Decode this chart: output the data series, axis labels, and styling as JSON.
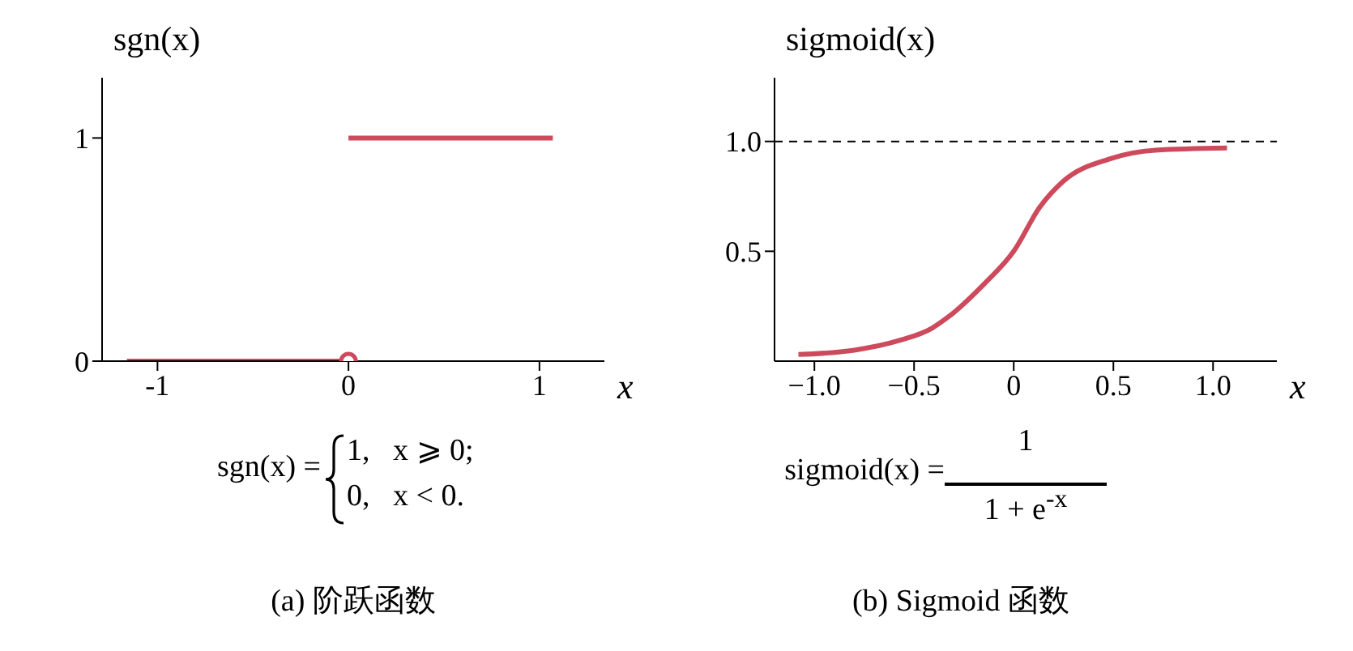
{
  "chart_data": [
    {
      "type": "line",
      "ylabel": "sgn(x)",
      "xlabel": "x",
      "xlim": [
        -1.29,
        1.34
      ],
      "xticks": [
        {
          "value": -1,
          "label": "-1"
        },
        0,
        1
      ],
      "ylim": [
        0,
        1.27
      ],
      "yticks": [
        0,
        1
      ],
      "series": [
        {
          "type": "line",
          "color": "#cd4a5c",
          "x": [
            -1.16,
            0
          ],
          "values": [
            0,
            0
          ]
        },
        {
          "type": "line",
          "color": "#cd4a5c",
          "x": [
            0,
            1.07
          ],
          "values": [
            1,
            1
          ]
        },
        {
          "type": "scatter",
          "color": "#cd4a5c",
          "marker": "circle",
          "x": [
            0
          ],
          "values": [
            0
          ]
        }
      ],
      "annotations": [
        "sgn(x) =",
        "1,   x ⩾ 0;",
        "0,   x < 0.",
        "(a) 阶跃函数"
      ]
    },
    {
      "type": "line",
      "ylabel": "sigmoid(x)",
      "xlabel": "x",
      "xlim": [
        -1.2,
        1.32
      ],
      "xticks": [
        {
          "value": -1,
          "label": "−1.0"
        },
        {
          "value": -0.5,
          "label": "−0.5"
        },
        0,
        0.5,
        {
          "value": 1,
          "label": "1.0"
        }
      ],
      "ylim": [
        0,
        1.29
      ],
      "yticks": [
        0.5,
        {
          "value": 1,
          "label": "1.0"
        }
      ],
      "series": [
        {
          "type": "line",
          "color": "#cd4a5c",
          "x": [
            -1.08,
            -0.8,
            -0.57,
            -0.41,
            -0.33,
            -0.15,
            0,
            0.13,
            0.25,
            0.48,
            0.71,
            1.07
          ],
          "values": [
            0.03,
            0.05,
            0.095,
            0.15,
            0.2,
            0.35,
            0.5,
            0.7,
            0.82,
            0.92,
            0.96,
            0.97
          ]
        }
      ],
      "ref_lines": [
        {
          "axis": "y",
          "value": 1,
          "color": "#000000",
          "line_style": "dashed"
        }
      ],
      "annotations": [
        "sigmoid(x) =",
        "1",
        "1 + e$^{-x}$",
        "(b) Sigmoid 函数"
      ]
    }
  ]
}
